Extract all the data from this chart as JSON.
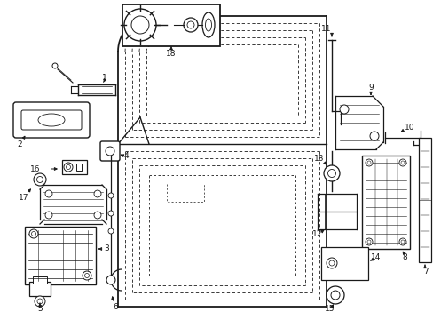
{
  "background_color": "#ffffff",
  "line_color": "#1a1a1a",
  "label_fontsize": 6.5,
  "figsize": [
    4.89,
    3.6
  ],
  "dpi": 100
}
